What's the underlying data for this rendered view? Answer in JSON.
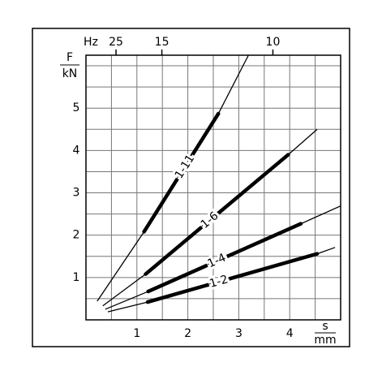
{
  "chart_data": {
    "type": "line",
    "top_axis_label": "Hz",
    "y_label": {
      "top": "F",
      "bottom": "kN"
    },
    "x_label": {
      "top": "s",
      "bottom": "mm"
    },
    "xlim": [
      0,
      5
    ],
    "ylim": [
      0,
      6.25
    ],
    "xticks": [
      1,
      2,
      3,
      4
    ],
    "yticks": [
      1,
      2,
      3,
      4,
      5
    ],
    "xgrid": [
      0.5,
      1,
      1.5,
      2,
      2.5,
      3,
      3.5,
      4,
      4.5
    ],
    "ygrid": [
      0.5,
      1,
      1.5,
      2,
      2.5,
      3,
      3.5,
      4,
      4.5,
      5,
      5.5,
      6
    ],
    "top_ticks": [
      {
        "value": 0.59,
        "label": "25"
      },
      {
        "value": 1.49,
        "label": "15"
      },
      {
        "value": 3.67,
        "label": "10"
      }
    ],
    "color": "#000000",
    "series": [
      {
        "name": "1-11",
        "x": [
          0.22,
          1.14,
          2.6,
          3.19
        ],
        "values": [
          0.44,
          2.08,
          4.87,
          6.25
        ]
      },
      {
        "name": "1-6",
        "x": [
          0.33,
          1.17,
          3.97,
          4.54
        ],
        "values": [
          0.33,
          1.08,
          3.9,
          4.5
        ]
      },
      {
        "name": "1-4",
        "x": [
          0.38,
          1.22,
          4.22,
          5.0
        ],
        "values": [
          0.25,
          0.67,
          2.27,
          2.69
        ]
      },
      {
        "name": "1-2",
        "x": [
          0.43,
          1.21,
          4.54,
          4.89
        ],
        "values": [
          0.19,
          0.42,
          1.56,
          1.71
        ]
      }
    ]
  }
}
